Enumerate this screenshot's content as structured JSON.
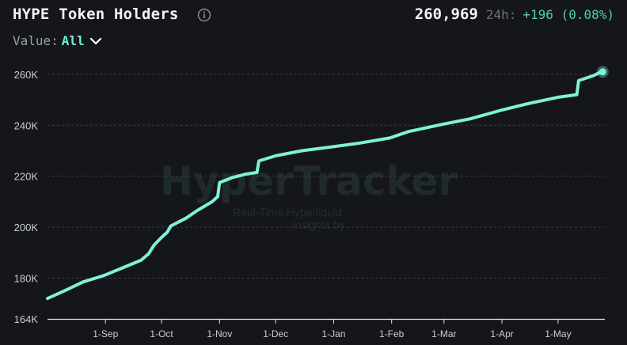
{
  "header": {
    "title": "HYPE Token Holders",
    "info_icon": "info-circle-icon",
    "total": "260,969",
    "period_label": "24h:",
    "change": "+196 (0.08%)"
  },
  "filter": {
    "label": "Value:",
    "selected": "All",
    "icon": "chevron-down-icon"
  },
  "watermark": {
    "logo": "HyperTracker",
    "tagline_line1": "Real-Time Hyperliquid",
    "tagline_line2": "Insights by"
  },
  "colors": {
    "background": "#15161b",
    "line": "#7ef2d6",
    "change_positive": "#4fd1a5",
    "accent": "#6ff0d4"
  },
  "chart_data": {
    "type": "line",
    "title": "HYPE Token Holders",
    "xlabel": "",
    "ylabel": "",
    "ylim": [
      164000,
      264000
    ],
    "y_ticks": [
      164000,
      180000,
      200000,
      220000,
      240000,
      260000
    ],
    "y_tick_labels": [
      "164K",
      "180K",
      "200K",
      "220K",
      "240K",
      "260K"
    ],
    "x_ticks": [
      "2024-09-01",
      "2024-10-01",
      "2024-11-01",
      "2024-12-01",
      "2025-01-01",
      "2025-02-01",
      "2025-03-01",
      "2025-04-01",
      "2025-05-01"
    ],
    "x_tick_labels": [
      "1-Sep",
      "1-Oct",
      "1-Nov",
      "1-Dec",
      "1-Jan",
      "1-Feb",
      "1-Mar",
      "1-Apr",
      "1-May"
    ],
    "xlim": [
      "2024-08-01",
      "2025-05-26"
    ],
    "grid": "horizontal dashed at each y tick",
    "legend": "none",
    "last_value_marker": true,
    "series": [
      {
        "name": "HYPE Token Holders",
        "color": "#7ef2d6",
        "points": [
          [
            "2024-08-01",
            172000
          ],
          [
            "2024-08-10",
            175000
          ],
          [
            "2024-08-20",
            178500
          ],
          [
            "2024-08-31",
            181000
          ],
          [
            "2024-09-10",
            184000
          ],
          [
            "2024-09-20",
            187000
          ],
          [
            "2024-09-24",
            189500
          ],
          [
            "2024-09-27",
            193000
          ],
          [
            "2024-10-01",
            196000
          ],
          [
            "2024-10-04",
            198000
          ],
          [
            "2024-10-06",
            200500
          ],
          [
            "2024-10-14",
            203500
          ],
          [
            "2024-10-20",
            206500
          ],
          [
            "2024-10-28",
            210000
          ],
          [
            "2024-10-31",
            212000
          ],
          [
            "2024-11-01",
            217500
          ],
          [
            "2024-11-08",
            219500
          ],
          [
            "2024-11-15",
            220800
          ],
          [
            "2024-11-21",
            221500
          ],
          [
            "2024-11-22",
            226000
          ],
          [
            "2024-12-01",
            228000
          ],
          [
            "2024-12-15",
            230000
          ],
          [
            "2024-12-31",
            231500
          ],
          [
            "2025-01-15",
            233000
          ],
          [
            "2025-01-31",
            235000
          ],
          [
            "2025-02-10",
            237500
          ],
          [
            "2025-03-01",
            240500
          ],
          [
            "2025-03-15",
            242500
          ],
          [
            "2025-04-01",
            246000
          ],
          [
            "2025-04-15",
            248500
          ],
          [
            "2025-05-01",
            251000
          ],
          [
            "2025-05-11",
            252000
          ],
          [
            "2025-05-12",
            257500
          ],
          [
            "2025-05-20",
            259500
          ],
          [
            "2025-05-24",
            260969
          ]
        ]
      }
    ]
  }
}
